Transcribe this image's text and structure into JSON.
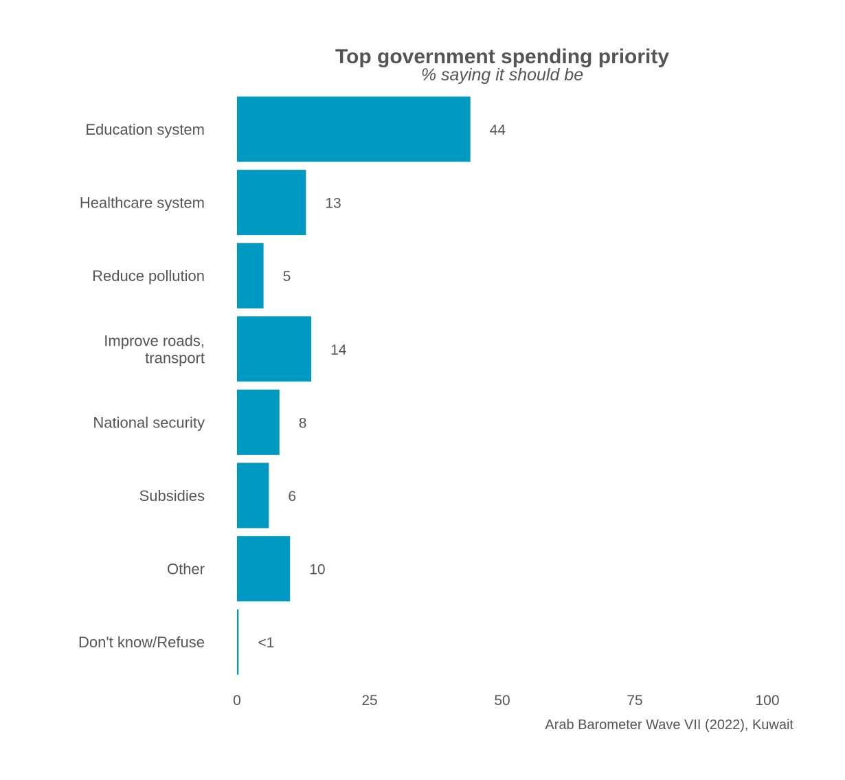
{
  "chart_data": {
    "type": "bar",
    "orientation": "horizontal",
    "title": "Top government spending priority",
    "subtitle": "% saying it should be",
    "caption": "Arab Barometer Wave VII (2022), Kuwait",
    "categories": [
      "Education system",
      "Healthcare system",
      "Reduce pollution",
      "Improve roads,\ntransport",
      "National security",
      "Subsidies",
      "Other",
      "Don't know/Refuse"
    ],
    "values": [
      44,
      13,
      5,
      14,
      8,
      6,
      10,
      0.3
    ],
    "value_labels": [
      "44",
      "13",
      "5",
      "14",
      "8",
      "6",
      "10",
      "<1"
    ],
    "xlim": [
      0,
      100
    ],
    "xticks": [
      0,
      25,
      50,
      75,
      100
    ],
    "xtick_labels": [
      "0",
      "25",
      "50",
      "75",
      "100"
    ],
    "bar_color": "#0099C1",
    "text_color": "#555555",
    "grid": false,
    "legend": "none"
  }
}
